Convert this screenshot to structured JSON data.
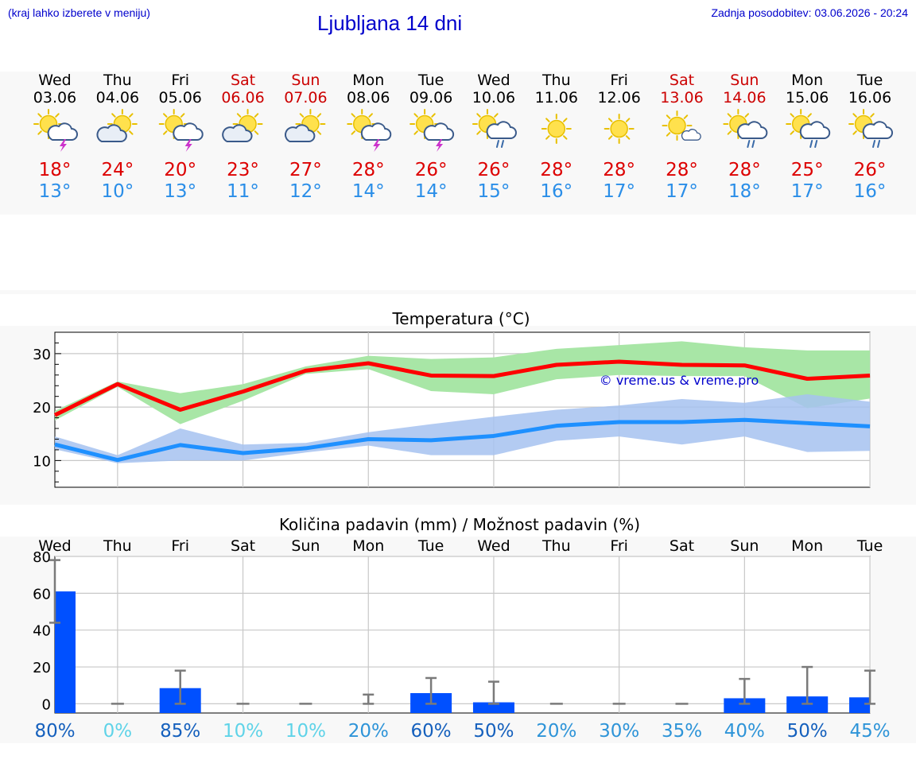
{
  "header": {
    "hint": "(kraj lahko izberete v meniju)",
    "title": "Ljubljana 14 dni",
    "updated": "Zadnja posodobitev: 03.06.2026 - 20:24"
  },
  "colors": {
    "weekday": "#000000",
    "weekend": "#cc0000",
    "tmax": "#dd0000",
    "tmin": "#2a8ee8",
    "max_line": "#ff0000",
    "min_line": "#1e90ff",
    "max_band": "#a8e6a6",
    "min_band": "#a6c2f0",
    "precip_bar": "#0050ff",
    "watermark": "#0000cc"
  },
  "days": [
    {
      "dow": "Wed",
      "date": "03.06",
      "weekend": false,
      "icon": "sun-cloud-thunder-icon",
      "tmax": "18°",
      "tmin": "13°"
    },
    {
      "dow": "Thu",
      "date": "04.06",
      "weekend": false,
      "icon": "sun-cloud-icon",
      "tmax": "24°",
      "tmin": "10°"
    },
    {
      "dow": "Fri",
      "date": "05.06",
      "weekend": false,
      "icon": "sun-cloud-thunder-icon",
      "tmax": "20°",
      "tmin": "13°"
    },
    {
      "dow": "Sat",
      "date": "06.06",
      "weekend": true,
      "icon": "sun-cloud-icon",
      "tmax": "23°",
      "tmin": "11°"
    },
    {
      "dow": "Sun",
      "date": "07.06",
      "weekend": true,
      "icon": "sun-cloud-icon",
      "tmax": "27°",
      "tmin": "12°"
    },
    {
      "dow": "Mon",
      "date": "08.06",
      "weekend": false,
      "icon": "sun-cloud-thunder-icon",
      "tmax": "28°",
      "tmin": "14°"
    },
    {
      "dow": "Tue",
      "date": "09.06",
      "weekend": false,
      "icon": "sun-cloud-thunder-icon",
      "tmax": "26°",
      "tmin": "14°"
    },
    {
      "dow": "Wed",
      "date": "10.06",
      "weekend": false,
      "icon": "sun-cloud-rain-icon",
      "tmax": "26°",
      "tmin": "15°"
    },
    {
      "dow": "Thu",
      "date": "11.06",
      "weekend": false,
      "icon": "sun-icon",
      "tmax": "28°",
      "tmin": "16°"
    },
    {
      "dow": "Fri",
      "date": "12.06",
      "weekend": false,
      "icon": "sun-icon",
      "tmax": "28°",
      "tmin": "17°"
    },
    {
      "dow": "Sat",
      "date": "13.06",
      "weekend": true,
      "icon": "sun-small-cloud-icon",
      "tmax": "28°",
      "tmin": "17°"
    },
    {
      "dow": "Sun",
      "date": "14.06",
      "weekend": true,
      "icon": "sun-cloud-rain-icon",
      "tmax": "28°",
      "tmin": "18°"
    },
    {
      "dow": "Mon",
      "date": "15.06",
      "weekend": false,
      "icon": "sun-cloud-rain-icon",
      "tmax": "25°",
      "tmin": "17°"
    },
    {
      "dow": "Tue",
      "date": "16.06",
      "weekend": false,
      "icon": "sun-cloud-rain-icon",
      "tmax": "26°",
      "tmin": "16°"
    }
  ],
  "chart_data": [
    {
      "type": "line",
      "title": "Temperatura (°C)",
      "xlabel": "",
      "ylabel": "",
      "ylim": [
        5,
        34
      ],
      "yticks": [
        10,
        20,
        30
      ],
      "grid": true,
      "x": [
        "03.06",
        "04.06",
        "05.06",
        "06.06",
        "07.06",
        "08.06",
        "09.06",
        "10.06",
        "11.06",
        "12.06",
        "13.06",
        "14.06",
        "15.06",
        "16.06"
      ],
      "series": [
        {
          "values": [
            18.5,
            24.3,
            19.5,
            22.9,
            26.8,
            28.2,
            25.9,
            25.8,
            27.9,
            28.5,
            27.9,
            27.8,
            25.3,
            25.9
          ]
        },
        {
          "values": [
            13.0,
            10.1,
            12.9,
            11.4,
            12.3,
            14.0,
            13.8,
            14.6,
            16.5,
            17.2,
            17.2,
            17.6,
            17.0,
            16.4
          ]
        }
      ],
      "bands": [
        {
          "low": [
            17.5,
            23.8,
            16.8,
            21.2,
            26.2,
            27.1,
            23.0,
            22.4,
            25.2,
            26.0,
            25.8,
            25.8,
            19.8,
            21.6
          ],
          "high": [
            19.3,
            24.8,
            22.6,
            24.3,
            27.6,
            29.6,
            29.0,
            29.3,
            30.9,
            31.6,
            32.3,
            31.2,
            30.6,
            30.6
          ]
        },
        {
          "low": [
            12.1,
            9.5,
            10.0,
            10.0,
            11.5,
            12.8,
            11.0,
            11.0,
            13.7,
            14.5,
            13.0,
            14.5,
            11.6,
            11.8
          ],
          "high": [
            14.5,
            11.0,
            16.0,
            13.0,
            13.3,
            15.3,
            16.8,
            18.2,
            19.5,
            20.3,
            21.5,
            20.8,
            22.4,
            21.0
          ]
        }
      ],
      "annotations": [
        "© vreme.us & vreme.pro"
      ]
    },
    {
      "type": "bar",
      "title": "Količina padavin (mm) / Možnost padavin (%)",
      "xlabel": "",
      "ylabel": "",
      "ylim": [
        -5,
        80
      ],
      "yticks": [
        0,
        20,
        40,
        60,
        80
      ],
      "grid": true,
      "categories": [
        "Wed",
        "Thu",
        "Fri",
        "Sat",
        "Sun",
        "Mon",
        "Tue",
        "Wed",
        "Thu",
        "Fri",
        "Sat",
        "Sun",
        "Mon",
        "Tue"
      ],
      "values": [
        61,
        0,
        8.5,
        0,
        0,
        0,
        5.8,
        0.8,
        0,
        0,
        0,
        3,
        4,
        3.5
      ],
      "error_low": [
        44,
        0,
        0,
        0,
        0,
        0,
        0,
        0,
        0,
        0,
        0,
        0,
        0,
        0
      ],
      "error_high": [
        78,
        0,
        18,
        0,
        0,
        5,
        14,
        12,
        0,
        0,
        0,
        13.5,
        20,
        18
      ],
      "probability": [
        "80%",
        "0%",
        "85%",
        "10%",
        "10%",
        "20%",
        "60%",
        "50%",
        "20%",
        "30%",
        "35%",
        "40%",
        "50%",
        "45%"
      ],
      "probability_colors": [
        "#1560bd",
        "#5fd3e8",
        "#1560bd",
        "#5fd3e8",
        "#5fd3e8",
        "#2e94d8",
        "#1560bd",
        "#1560bd",
        "#2e94d8",
        "#2e94d8",
        "#2e94d8",
        "#2e94d8",
        "#1560bd",
        "#2e94d8"
      ]
    }
  ]
}
